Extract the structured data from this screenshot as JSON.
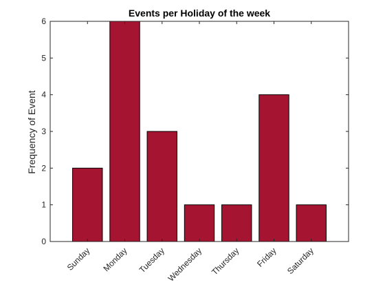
{
  "chart_data": {
    "type": "bar",
    "title": "Events per Holiday of the week",
    "xlabel": "",
    "ylabel": "Frequency of Event",
    "categories": [
      "Sunday",
      "Monday",
      "Tuesday",
      "Wednesday",
      "Thursday",
      "Friday",
      "Saturday"
    ],
    "values": [
      2,
      6,
      3,
      1,
      1,
      4,
      1
    ],
    "ylim": [
      0,
      6
    ],
    "yticks": [
      0,
      1,
      2,
      3,
      4,
      5,
      6
    ],
    "grid": false,
    "bar_color": "#A51431",
    "edge_color": "#000000"
  }
}
